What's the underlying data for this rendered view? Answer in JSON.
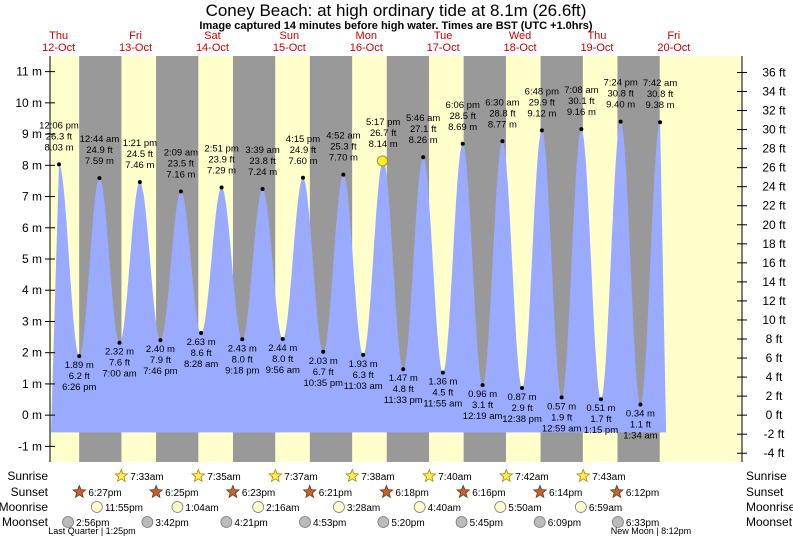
{
  "header": {
    "title": "Coney Beach: at high  ordinary tide at 8.1m (26.6ft)",
    "subtitle": "Image captured 14 minutes before high water. Times are BST (UTC +1.0hrs)"
  },
  "days": [
    {
      "dow": "Thu",
      "date": "12-Oct"
    },
    {
      "dow": "Fri",
      "date": "13-Oct"
    },
    {
      "dow": "Sat",
      "date": "14-Oct"
    },
    {
      "dow": "Sun",
      "date": "15-Oct"
    },
    {
      "dow": "Mon",
      "date": "16-Oct"
    },
    {
      "dow": "Tue",
      "date": "17-Oct"
    },
    {
      "dow": "Wed",
      "date": "18-Oct"
    },
    {
      "dow": "Thu",
      "date": "19-Oct"
    },
    {
      "dow": "Fri",
      "date": "20-Oct"
    }
  ],
  "chart_data": {
    "type": "area",
    "title": "Coney Beach: at high  ordinary tide at 8.1m (26.6ft)",
    "y_left_unit": "m",
    "y_right_unit": "ft",
    "ylim_m": [
      -1.5,
      11.5
    ],
    "y_left_ticks": [
      "-1 m",
      "0 m",
      "1 m",
      "2 m",
      "3 m",
      "4 m",
      "5 m",
      "6 m",
      "7 m",
      "8 m",
      "9 m",
      "10 m",
      "11 m"
    ],
    "y_right_ticks": [
      "-4 ft",
      "-2 ft",
      "0 ft",
      "2 ft",
      "4 ft",
      "6 ft",
      "8 ft",
      "10 ft",
      "12 ft",
      "14 ft",
      "16 ft",
      "18 ft",
      "20 ft",
      "22 ft",
      "24 ft",
      "26 ft",
      "28 ft",
      "30 ft",
      "32 ft",
      "34 ft",
      "36 ft"
    ],
    "current_marker": {
      "height_m": 8.14
    },
    "tides": [
      {
        "type": "high",
        "time": "12:06 pm",
        "ft": "26.3 ft",
        "m": 8.03,
        "m_label": "8.03 m"
      },
      {
        "type": "low",
        "time": "6:26 pm",
        "ft": "6.2 ft",
        "m": 1.89,
        "m_label": "1.89 m"
      },
      {
        "type": "high",
        "time": "12:44 am",
        "ft": "24.9 ft",
        "m": 7.59,
        "m_label": "7.59 m"
      },
      {
        "type": "low",
        "time": "7:00 am",
        "ft": "7.6 ft",
        "m": 2.32,
        "m_label": "2.32 m"
      },
      {
        "type": "high",
        "time": "1:21 pm",
        "ft": "24.5 ft",
        "m": 7.46,
        "m_label": "7.46 m"
      },
      {
        "type": "low",
        "time": "7:46 pm",
        "ft": "7.9 ft",
        "m": 2.4,
        "m_label": "2.40 m"
      },
      {
        "type": "high",
        "time": "2:09 am",
        "ft": "23.5 ft",
        "m": 7.16,
        "m_label": "7.16 m"
      },
      {
        "type": "low",
        "time": "8:28 am",
        "ft": "8.6 ft",
        "m": 2.63,
        "m_label": "2.63 m"
      },
      {
        "type": "high",
        "time": "2:51 pm",
        "ft": "23.9 ft",
        "m": 7.29,
        "m_label": "7.29 m"
      },
      {
        "type": "low",
        "time": "9:18 pm",
        "ft": "8.0 ft",
        "m": 2.43,
        "m_label": "2.43 m"
      },
      {
        "type": "high",
        "time": "3:39 am",
        "ft": "23.8 ft",
        "m": 7.24,
        "m_label": "7.24 m"
      },
      {
        "type": "low",
        "time": "9:56 am",
        "ft": "8.0 ft",
        "m": 2.44,
        "m_label": "2.44 m"
      },
      {
        "type": "high",
        "time": "4:15 pm",
        "ft": "24.9 ft",
        "m": 7.6,
        "m_label": "7.60 m"
      },
      {
        "type": "low",
        "time": "10:35 pm",
        "ft": "6.7 ft",
        "m": 2.03,
        "m_label": "2.03 m"
      },
      {
        "type": "high",
        "time": "4:52 am",
        "ft": "25.3 ft",
        "m": 7.7,
        "m_label": "7.70 m"
      },
      {
        "type": "low",
        "time": "11:03 am",
        "ft": "6.3 ft",
        "m": 1.93,
        "m_label": "1.93 m"
      },
      {
        "type": "high",
        "time": "5:17 pm",
        "ft": "26.7 ft",
        "m": 8.14,
        "m_label": "8.14 m"
      },
      {
        "type": "low",
        "time": "11:33 pm",
        "ft": "4.8 ft",
        "m": 1.47,
        "m_label": "1.47 m"
      },
      {
        "type": "high",
        "time": "5:46 am",
        "ft": "27.1 ft",
        "m": 8.26,
        "m_label": "8.26 m"
      },
      {
        "type": "low",
        "time": "11:55 am",
        "ft": "4.5 ft",
        "m": 1.36,
        "m_label": "1.36 m"
      },
      {
        "type": "high",
        "time": "6:06 pm",
        "ft": "28.5 ft",
        "m": 8.69,
        "m_label": "8.69 m"
      },
      {
        "type": "low",
        "time": "12:19 am",
        "ft": "3.1 ft",
        "m": 0.96,
        "m_label": "0.96 m"
      },
      {
        "type": "high",
        "time": "6:30 am",
        "ft": "28.8 ft",
        "m": 8.77,
        "m_label": "8.77 m"
      },
      {
        "type": "low",
        "time": "12:38 pm",
        "ft": "2.9 ft",
        "m": 0.87,
        "m_label": "0.87 m"
      },
      {
        "type": "high",
        "time": "6:48 pm",
        "ft": "29.9 ft",
        "m": 9.12,
        "m_label": "9.12 m"
      },
      {
        "type": "low",
        "time": "12:59 am",
        "ft": "1.9 ft",
        "m": 0.57,
        "m_label": "0.57 m"
      },
      {
        "type": "high",
        "time": "7:08 am",
        "ft": "30.1 ft",
        "m": 9.16,
        "m_label": "9.16 m"
      },
      {
        "type": "low",
        "time": "1:15 pm",
        "ft": "1.7 ft",
        "m": 0.51,
        "m_label": "0.51 m"
      },
      {
        "type": "high",
        "time": "7:24 pm",
        "ft": "30.8 ft",
        "m": 9.4,
        "m_label": "9.40 m"
      },
      {
        "type": "low",
        "time": "1:34 am",
        "ft": "1.1 ft",
        "m": 0.34,
        "m_label": "0.34 m"
      },
      {
        "type": "high",
        "time": "7:42 am",
        "ft": "30.8 ft",
        "m": 9.38,
        "m_label": "9.38 m"
      }
    ]
  },
  "astro": {
    "labels": {
      "sunrise": "Sunrise",
      "sunset": "Sunset",
      "moonrise": "Moonrise",
      "moonset": "Moonset"
    },
    "sunrise": [
      "7:33am",
      "7:35am",
      "7:37am",
      "7:38am",
      "7:40am",
      "7:42am",
      "7:43am"
    ],
    "sunset": [
      "6:27pm",
      "6:25pm",
      "6:23pm",
      "6:21pm",
      "6:18pm",
      "6:16pm",
      "6:14pm",
      "6:12pm"
    ],
    "moonrise": [
      "11:55pm",
      "1:04am",
      "2:16am",
      "3:28am",
      "4:40am",
      "5:50am",
      "6:59am"
    ],
    "moonset": [
      "2:56pm",
      "3:42pm",
      "4:21pm",
      "4:53pm",
      "5:20pm",
      "5:45pm",
      "6:09pm",
      "6:33pm"
    ],
    "moon_phase_left": "Last Quarter | 1:25pm",
    "moon_phase_right": "New Moon | 8:12pm"
  },
  "colors": {
    "day": "#ffffcc",
    "night": "#999999",
    "water": "#99aaff",
    "day_label": "#cc0000",
    "marker": "#ffee33"
  }
}
